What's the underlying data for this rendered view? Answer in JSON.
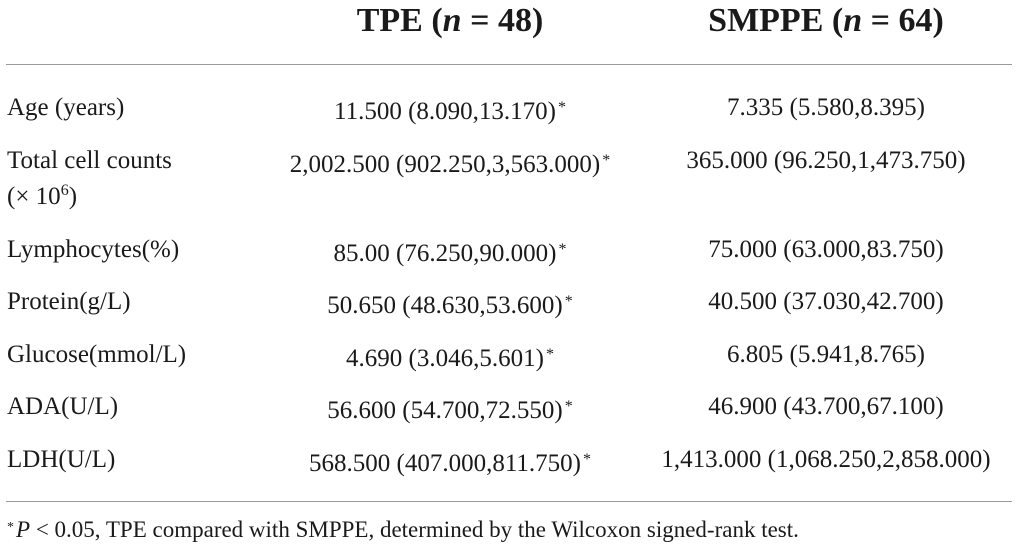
{
  "header": {
    "col1_name": "TPE",
    "col1_open": " (",
    "col1_n": "n",
    "col1_eq": " = 48)",
    "col2_name": "SMPPE",
    "col2_open": " (",
    "col2_n": "n",
    "col2_eq": " = 64)"
  },
  "rows": [
    {
      "label": "Age (years)",
      "tpe": "11.500 (8.090,13.170)",
      "tpe_mark": "*",
      "smppe": "7.335 (5.580,8.395)"
    },
    {
      "label_line1": "Total cell counts",
      "label_line2_pre": "(× 10",
      "label_line2_sup": "6",
      "label_line2_post": ")",
      "tpe": "2,002.500 (902.250,3,563.000)",
      "tpe_mark": "*",
      "smppe": "365.000 (96.250,1,473.750)"
    },
    {
      "label": "Lymphocytes(%)",
      "tpe": "85.00 (76.250,90.000)",
      "tpe_mark": "*",
      "smppe": "75.000 (63.000,83.750)"
    },
    {
      "label": "Protein(g/L)",
      "tpe": "50.650 (48.630,53.600)",
      "tpe_mark": "*",
      "smppe": "40.500 (37.030,42.700)"
    },
    {
      "label": "Glucose(mmol/L)",
      "tpe": "4.690 (3.046,5.601)",
      "tpe_mark": "*",
      "smppe": "6.805 (5.941,8.765)"
    },
    {
      "label": "ADA(U/L)",
      "tpe": "56.600 (54.700,72.550)",
      "tpe_mark": "*",
      "smppe": "46.900 (43.700,67.100)"
    },
    {
      "label": "LDH(U/L)",
      "tpe": "568.500 (407.000,811.750)",
      "tpe_mark": "*",
      "smppe": "1,413.000 (1,068.250,2,858.000)"
    }
  ],
  "footnote": {
    "mark": "*",
    "p": "P",
    "text": " < 0.05, TPE compared with SMPPE, determined by the Wilcoxon signed-rank test."
  }
}
